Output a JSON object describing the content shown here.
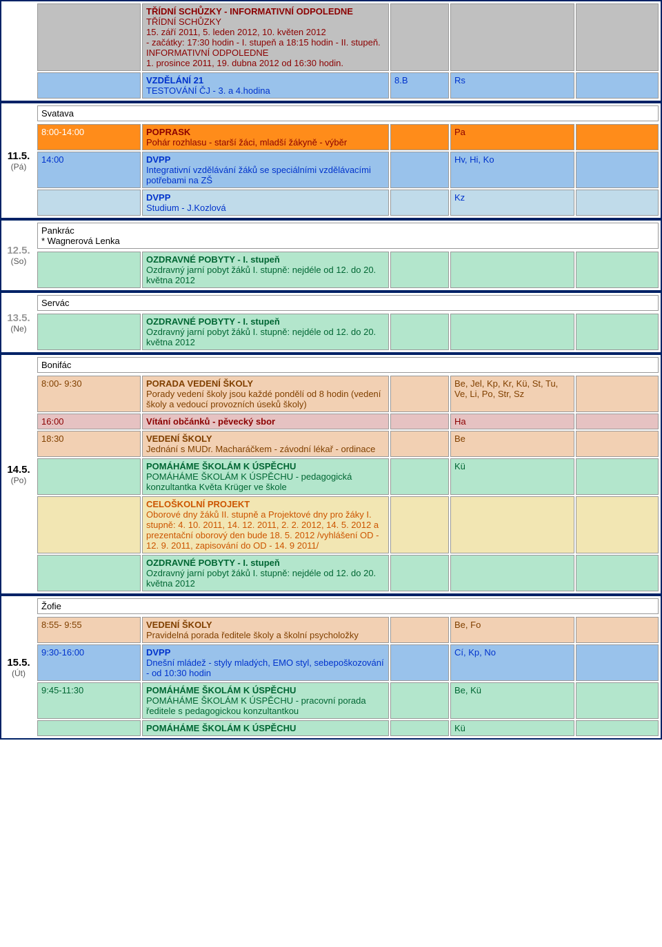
{
  "day0": {
    "rows": [
      {
        "time": "",
        "bg": "bg-gray",
        "title": "TŘÍDNÍ SCHŮZKY - INFORMATIVNÍ ODPOLEDNE",
        "titleClass": "title-red",
        "desc": "TŘÍDNÍ SCHŮZKY\n15. září 2011, 5. leden 2012, 10. květen 2012\n- začátky: 17:30 hodin - I. stupeň a 18:15 hodin - II. stupeň.\nINFORMATIVNÍ ODPOLEDNE\n1. prosince 2011, 19. dubna 2012 od 16:30 hodin.",
        "descClass": "txt-red",
        "room": "",
        "who": "",
        "extra": ""
      },
      {
        "time": "",
        "bg": "bg-blue",
        "title": "VZDĚLÁNÍ 21",
        "titleClass": "title-blue",
        "desc": "TESTOVÁNÍ ČJ - 3. a 4.hodina",
        "descClass": "txt-blue",
        "room": "8.B",
        "who": "Rs",
        "extra": ""
      }
    ]
  },
  "day1": {
    "date": "11.5.",
    "dow": "(Pá)",
    "name": "Svatava",
    "rows": [
      {
        "time": "8:00-14:00",
        "bg": "bg-orange",
        "timeClass": "txt-redwhite",
        "title": "POPRASK",
        "titleClass": "title-red",
        "desc": "Pohár rozhlasu - starší žáci, mladší žákyně - výběr",
        "descClass": "txt-red",
        "room": "",
        "who": "Pa",
        "whoClass": "txt-red",
        "extra": ""
      },
      {
        "time": "14:00",
        "bg": "bg-blue",
        "timeClass": "txt-blue",
        "title": "DVPP",
        "titleClass": "title-blue",
        "desc": "Integrativní vzdělávání žáků se speciálními vzdělávacími potřebami na ZŠ",
        "descClass": "txt-blue",
        "room": "",
        "who": "Hv, Hi, Ko",
        "whoClass": "txt-blue",
        "extra": ""
      },
      {
        "time": "",
        "bg": "bg-bluelt",
        "title": "DVPP",
        "titleClass": "title-blue",
        "desc": "Studium - J.Kozlová",
        "descClass": "txt-blue",
        "room": "",
        "who": "Kz",
        "whoClass": "txt-blue",
        "extra": ""
      }
    ]
  },
  "day2": {
    "date": "12.5.",
    "dow": "(So)",
    "faded": true,
    "name": "Pankrác\n* Wagnerová Lenka",
    "rows": [
      {
        "time": "",
        "bg": "bg-green",
        "title": "OZDRAVNÉ POBYTY - I. stupeň",
        "titleClass": "title-greendark",
        "desc": "Ozdravný jarní pobyt žáků I. stupně: nejdéle od 12. do 20. května 2012",
        "descClass": "txt-green",
        "room": "",
        "who": "",
        "extra": ""
      }
    ]
  },
  "day3": {
    "date": "13.5.",
    "dow": "(Ne)",
    "faded": true,
    "name": "Servác",
    "rows": [
      {
        "time": "",
        "bg": "bg-green",
        "title": "OZDRAVNÉ POBYTY - I. stupeň",
        "titleClass": "title-greendark",
        "desc": "Ozdravný jarní pobyt žáků I. stupně: nejdéle od 12. do 20. května 2012",
        "descClass": "txt-green",
        "room": "",
        "who": "",
        "extra": ""
      }
    ]
  },
  "day4": {
    "date": "14.5.",
    "dow": "(Po)",
    "name": "Bonifác",
    "rows": [
      {
        "time": "8:00- 9:30",
        "bg": "bg-peach",
        "timeClass": "txt-brown",
        "title": "PORADA VEDENÍ ŠKOLY",
        "titleClass": "title-brown",
        "desc": "Porady vedení školy jsou každé pondělí od 8 hodin (vedení školy a vedoucí provozních úseků školy)",
        "descClass": "txt-brown",
        "room": "",
        "who": "Be, Jel, Kp, Kr, Kü, St, Tu, Ve, Li, Po, Str, Sz",
        "whoClass": "txt-brown",
        "extra": ""
      },
      {
        "time": "16:00",
        "bg": "bg-pink",
        "timeClass": "txt-red",
        "title": "Vítání občánků - pěvecký sbor",
        "titleClass": "title-darkred",
        "desc": "",
        "descClass": "",
        "room": "",
        "who": "Ha",
        "whoClass": "txt-red",
        "extra": ""
      },
      {
        "time": "18:30",
        "bg": "bg-peach",
        "timeClass": "txt-brown",
        "title": "VEDENÍ ŠKOLY",
        "titleClass": "title-brown",
        "desc": "Jednání s MUDr. Macharáčkem - závodní lékař - ordinace",
        "descClass": "txt-brown",
        "room": "",
        "who": "Be",
        "whoClass": "txt-brown",
        "extra": ""
      },
      {
        "time": "",
        "bg": "bg-green",
        "title": "POMÁHÁME ŠKOLÁM K ÚSPĚCHU",
        "titleClass": "title-greendark",
        "desc": "POMÁHÁME ŠKOLÁM K ÚSPĚCHU - pedagogická konzultantka Květa Krüger ve škole",
        "descClass": "txt-green",
        "room": "",
        "who": "Kü",
        "whoClass": "txt-green",
        "extra": ""
      },
      {
        "time": "",
        "bg": "bg-yellow",
        "title": "CELOŠKOLNÍ PROJEKT",
        "titleClass": "title-orange",
        "desc": "Oborové dny žáků II. stupně a Projektové dny pro žáky I. stupně: 4. 10. 2011, 14. 12. 2011, 2. 2. 2012, 14. 5. 2012 a prezentační oborový den bude 18. 5. 2012 /vyhlášení OD - 12. 9. 2011, zapisování do OD - 14. 9 2011/",
        "descClass": "txt-orange",
        "room": "",
        "who": "",
        "extra": ""
      },
      {
        "time": "",
        "bg": "bg-green",
        "title": "OZDRAVNÉ POBYTY - I. stupeň",
        "titleClass": "title-greendark",
        "desc": "Ozdravný jarní pobyt žáků I. stupně: nejdéle od 12. do 20. května 2012",
        "descClass": "txt-green",
        "room": "",
        "who": "",
        "extra": ""
      }
    ]
  },
  "day5": {
    "date": "15.5.",
    "dow": "(Út)",
    "name": "Žofie",
    "rows": [
      {
        "time": "8:55- 9:55",
        "bg": "bg-peach",
        "timeClass": "txt-brown",
        "title": "VEDENÍ ŠKOLY",
        "titleClass": "title-brown",
        "desc": "Pravidelná porada ředitele školy a školní psycholožky",
        "descClass": "txt-brown",
        "room": "",
        "who": "Be, Fo",
        "whoClass": "txt-brown",
        "extra": ""
      },
      {
        "time": "9:30-16:00",
        "bg": "bg-blue",
        "timeClass": "txt-blue",
        "title": "DVPP",
        "titleClass": "title-blue",
        "desc": "Dnešní mládež - styly mladých, EMO styl, sebepoškozování - od 10:30 hodin",
        "descClass": "txt-blue",
        "room": "",
        "who": "Cí, Kp, No",
        "whoClass": "txt-blue",
        "extra": ""
      },
      {
        "time": "9:45-11:30",
        "bg": "bg-green",
        "timeClass": "txt-green",
        "title": "POMÁHÁME ŠKOLÁM K ÚSPĚCHU",
        "titleClass": "title-greendark",
        "desc": "POMÁHÁME ŠKOLÁM K ÚSPĚCHU - pracovní porada ředitele s pedagogickou konzultantkou",
        "descClass": "txt-green",
        "room": "",
        "who": "Be, Kü",
        "whoClass": "txt-green",
        "extra": ""
      },
      {
        "time": "",
        "bg": "bg-green",
        "title": "POMÁHÁME ŠKOLÁM K ÚSPĚCHU",
        "titleClass": "title-greendark",
        "desc": "",
        "descClass": "",
        "room": "",
        "who": "Kü",
        "whoClass": "txt-green",
        "extra": ""
      }
    ]
  }
}
